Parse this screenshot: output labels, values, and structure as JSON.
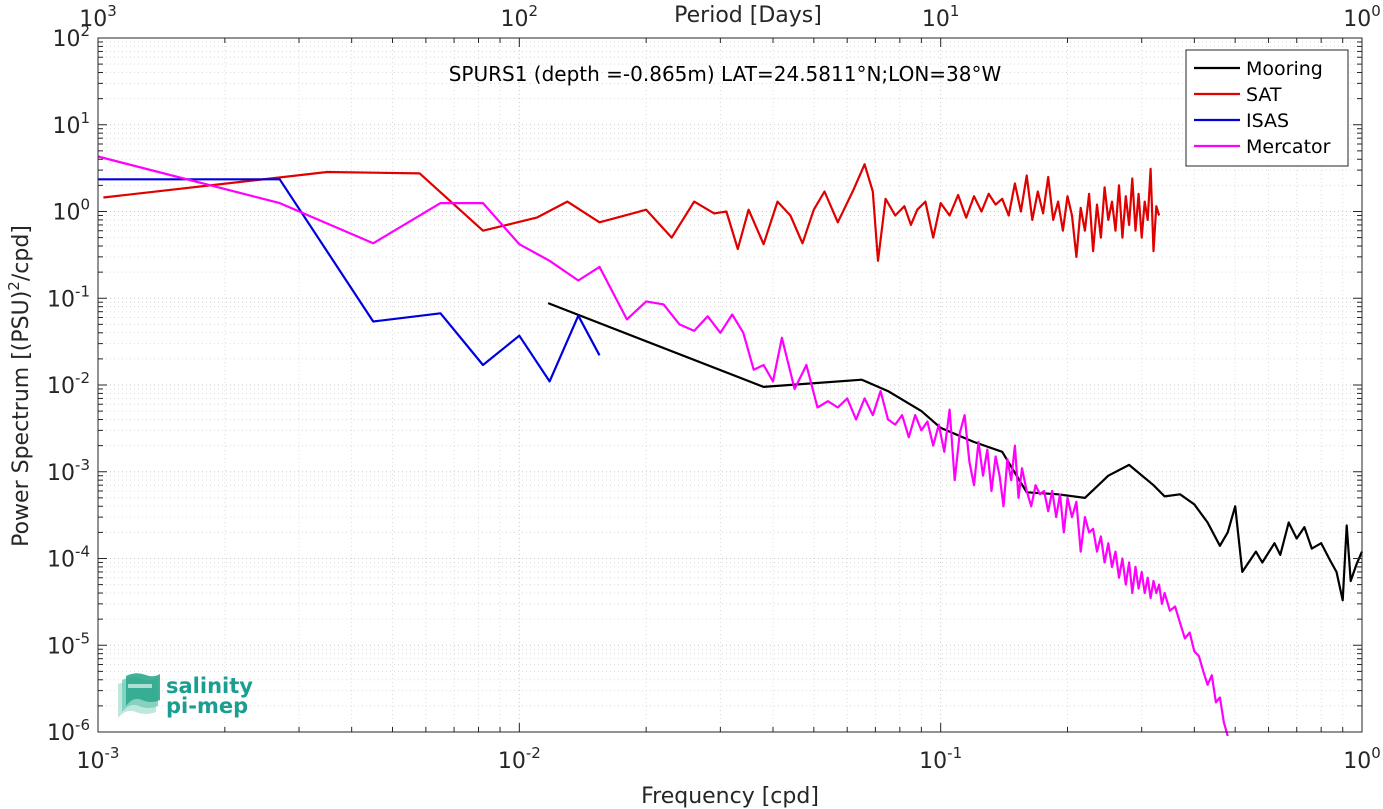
{
  "chart_data": {
    "type": "line",
    "title": "SPURS1 (depth =-0.865m) LAT=24.5811°N;LON=38°W",
    "xlabel": "Frequency [cpd]",
    "ylabel_main": "Power Spectrum [(PSU)",
    "ylabel_sup": "2",
    "ylabel_tail": "/cpd]",
    "top_xlabel": "Period [Days]",
    "xscale": "log",
    "yscale": "log",
    "xlim": [
      0.001,
      1
    ],
    "ylim": [
      1e-06,
      100
    ],
    "grid": true,
    "legend_position": "top-right",
    "x_ticks": [
      {
        "value": 0.001,
        "base": "10",
        "exp": "-3"
      },
      {
        "value": 0.01,
        "base": "10",
        "exp": "-2"
      },
      {
        "value": 0.1,
        "base": "10",
        "exp": "-1"
      },
      {
        "value": 1,
        "base": "10",
        "exp": "0"
      }
    ],
    "y_ticks": [
      {
        "value": 1e-06,
        "base": "10",
        "exp": "-6"
      },
      {
        "value": 1e-05,
        "base": "10",
        "exp": "-5"
      },
      {
        "value": 0.0001,
        "base": "10",
        "exp": "-4"
      },
      {
        "value": 0.001,
        "base": "10",
        "exp": "-3"
      },
      {
        "value": 0.01,
        "base": "10",
        "exp": "-2"
      },
      {
        "value": 0.1,
        "base": "10",
        "exp": "-1"
      },
      {
        "value": 1,
        "base": "10",
        "exp": "0"
      },
      {
        "value": 10,
        "base": "10",
        "exp": "1"
      },
      {
        "value": 100,
        "base": "10",
        "exp": "2"
      }
    ],
    "top_ticks": [
      {
        "value": 0.001,
        "base": "10",
        "exp": "3"
      },
      {
        "value": 0.01,
        "base": "10",
        "exp": "2"
      },
      {
        "value": 0.1,
        "base": "10",
        "exp": "1"
      },
      {
        "value": 1,
        "base": "10",
        "exp": "0"
      }
    ],
    "series": [
      {
        "name": "Mooring",
        "color": "#000000",
        "points": [
          [
            0.0117,
            0.088
          ],
          [
            0.038,
            0.0095
          ],
          [
            0.065,
            0.0115
          ],
          [
            0.075,
            0.0085
          ],
          [
            0.09,
            0.005
          ],
          [
            0.1,
            0.0032
          ],
          [
            0.12,
            0.0022
          ],
          [
            0.14,
            0.0017
          ],
          [
            0.16,
            0.00058
          ],
          [
            0.19,
            0.00055
          ],
          [
            0.22,
            0.0005
          ],
          [
            0.25,
            0.0009
          ],
          [
            0.28,
            0.0012
          ],
          [
            0.32,
            0.0007
          ],
          [
            0.34,
            0.00052
          ],
          [
            0.37,
            0.00055
          ],
          [
            0.4,
            0.00042
          ],
          [
            0.43,
            0.00026
          ],
          [
            0.46,
            0.00014
          ],
          [
            0.48,
            0.0002
          ],
          [
            0.5,
            0.0004
          ],
          [
            0.52,
            7e-05
          ],
          [
            0.56,
            0.00012
          ],
          [
            0.58,
            9e-05
          ],
          [
            0.62,
            0.00015
          ],
          [
            0.64,
            0.00011
          ],
          [
            0.67,
            0.00026
          ],
          [
            0.7,
            0.00017
          ],
          [
            0.73,
            0.00023
          ],
          [
            0.76,
            0.00013
          ],
          [
            0.8,
            0.00015
          ],
          [
            0.84,
            9.5e-05
          ],
          [
            0.87,
            7e-05
          ],
          [
            0.9,
            3.3e-05
          ],
          [
            0.92,
            0.00024
          ],
          [
            0.94,
            5.5e-05
          ],
          [
            0.97,
            8.5e-05
          ],
          [
            1.0,
            0.00012
          ]
        ]
      },
      {
        "name": "SAT",
        "color": "#e00000",
        "points": [
          [
            0.00103,
            1.45
          ],
          [
            0.0035,
            2.85
          ],
          [
            0.0058,
            2.75
          ],
          [
            0.0082,
            0.6
          ],
          [
            0.011,
            0.85
          ],
          [
            0.013,
            1.3
          ],
          [
            0.0155,
            0.75
          ],
          [
            0.02,
            1.05
          ],
          [
            0.023,
            0.5
          ],
          [
            0.026,
            1.3
          ],
          [
            0.029,
            0.95
          ],
          [
            0.031,
            1.0
          ],
          [
            0.033,
            0.37
          ],
          [
            0.035,
            1.05
          ],
          [
            0.038,
            0.42
          ],
          [
            0.041,
            1.3
          ],
          [
            0.044,
            0.9
          ],
          [
            0.047,
            0.43
          ],
          [
            0.05,
            1.05
          ],
          [
            0.053,
            1.7
          ],
          [
            0.057,
            0.75
          ],
          [
            0.062,
            1.75
          ],
          [
            0.066,
            3.5
          ],
          [
            0.069,
            1.7
          ],
          [
            0.071,
            0.27
          ],
          [
            0.074,
            1.4
          ],
          [
            0.078,
            0.9
          ],
          [
            0.082,
            1.15
          ],
          [
            0.085,
            0.7
          ],
          [
            0.088,
            1.05
          ],
          [
            0.092,
            1.3
          ],
          [
            0.096,
            0.5
          ],
          [
            0.1,
            1.25
          ],
          [
            0.105,
            0.9
          ],
          [
            0.11,
            1.55
          ],
          [
            0.115,
            0.85
          ],
          [
            0.12,
            1.5
          ],
          [
            0.125,
            1.0
          ],
          [
            0.13,
            1.6
          ],
          [
            0.135,
            1.2
          ],
          [
            0.14,
            1.4
          ],
          [
            0.145,
            0.9
          ],
          [
            0.15,
            2.1
          ],
          [
            0.155,
            1.0
          ],
          [
            0.16,
            2.6
          ],
          [
            0.165,
            0.8
          ],
          [
            0.17,
            1.7
          ],
          [
            0.175,
            0.95
          ],
          [
            0.18,
            2.5
          ],
          [
            0.185,
            0.8
          ],
          [
            0.19,
            1.3
          ],
          [
            0.195,
            0.6
          ],
          [
            0.2,
            1.5
          ],
          [
            0.205,
            0.9
          ],
          [
            0.21,
            0.3
          ],
          [
            0.215,
            1.1
          ],
          [
            0.22,
            0.6
          ],
          [
            0.225,
            1.6
          ],
          [
            0.23,
            0.35
          ],
          [
            0.235,
            1.2
          ],
          [
            0.24,
            0.5
          ],
          [
            0.245,
            1.9
          ],
          [
            0.25,
            0.8
          ],
          [
            0.255,
            1.3
          ],
          [
            0.26,
            0.6
          ],
          [
            0.265,
            2.0
          ],
          [
            0.27,
            0.5
          ],
          [
            0.275,
            1.5
          ],
          [
            0.28,
            0.7
          ],
          [
            0.285,
            2.4
          ],
          [
            0.29,
            0.6
          ],
          [
            0.295,
            1.6
          ],
          [
            0.3,
            0.5
          ],
          [
            0.305,
            1.3
          ],
          [
            0.31,
            0.8
          ],
          [
            0.315,
            3.1
          ],
          [
            0.32,
            0.35
          ],
          [
            0.325,
            1.15
          ],
          [
            0.33,
            0.9
          ]
        ]
      },
      {
        "name": "ISAS",
        "color": "#0000dd",
        "points": [
          [
            0.001,
            2.35
          ],
          [
            0.0027,
            2.35
          ],
          [
            0.0045,
            0.054
          ],
          [
            0.0065,
            0.067
          ],
          [
            0.0082,
            0.017
          ],
          [
            0.01,
            0.037
          ],
          [
            0.0118,
            0.011
          ],
          [
            0.0138,
            0.063
          ],
          [
            0.0155,
            0.022
          ]
        ]
      },
      {
        "name": "Mercator",
        "color": "#ff00ff",
        "points": [
          [
            0.001,
            4.3
          ],
          [
            0.0027,
            1.25
          ],
          [
            0.0045,
            0.43
          ],
          [
            0.0065,
            1.25
          ],
          [
            0.0082,
            1.25
          ],
          [
            0.01,
            0.42
          ],
          [
            0.0118,
            0.27
          ],
          [
            0.0138,
            0.16
          ],
          [
            0.0155,
            0.23
          ],
          [
            0.018,
            0.057
          ],
          [
            0.02,
            0.092
          ],
          [
            0.022,
            0.085
          ],
          [
            0.024,
            0.05
          ],
          [
            0.026,
            0.042
          ],
          [
            0.028,
            0.062
          ],
          [
            0.03,
            0.04
          ],
          [
            0.032,
            0.065
          ],
          [
            0.034,
            0.04
          ],
          [
            0.036,
            0.015
          ],
          [
            0.038,
            0.017
          ],
          [
            0.04,
            0.011
          ],
          [
            0.042,
            0.035
          ],
          [
            0.045,
            0.009
          ],
          [
            0.048,
            0.017
          ],
          [
            0.051,
            0.0055
          ],
          [
            0.054,
            0.0065
          ],
          [
            0.057,
            0.0055
          ],
          [
            0.06,
            0.007
          ],
          [
            0.063,
            0.004
          ],
          [
            0.066,
            0.007
          ],
          [
            0.069,
            0.0045
          ],
          [
            0.072,
            0.0085
          ],
          [
            0.075,
            0.004
          ],
          [
            0.078,
            0.0035
          ],
          [
            0.081,
            0.0045
          ],
          [
            0.084,
            0.0025
          ],
          [
            0.087,
            0.0045
          ],
          [
            0.09,
            0.003
          ],
          [
            0.093,
            0.0038
          ],
          [
            0.096,
            0.002
          ],
          [
            0.099,
            0.0035
          ],
          [
            0.102,
            0.0017
          ],
          [
            0.105,
            0.0052
          ],
          [
            0.108,
            0.0008
          ],
          [
            0.111,
            0.0028
          ],
          [
            0.114,
            0.0045
          ],
          [
            0.117,
            0.0013
          ],
          [
            0.12,
            0.0007
          ],
          [
            0.123,
            0.0022
          ],
          [
            0.126,
            0.0009
          ],
          [
            0.129,
            0.0018
          ],
          [
            0.132,
            0.0006
          ],
          [
            0.135,
            0.0015
          ],
          [
            0.138,
            0.0009
          ],
          [
            0.141,
            0.0004
          ],
          [
            0.144,
            0.0014
          ],
          [
            0.147,
            0.0008
          ],
          [
            0.15,
            0.002
          ],
          [
            0.153,
            0.0005
          ],
          [
            0.156,
            0.0011
          ],
          [
            0.16,
            0.0006
          ],
          [
            0.164,
            0.0004
          ],
          [
            0.168,
            0.0007
          ],
          [
            0.172,
            0.00055
          ],
          [
            0.176,
            0.0006
          ],
          [
            0.18,
            0.00035
          ],
          [
            0.184,
            0.0006
          ],
          [
            0.188,
            0.0003
          ],
          [
            0.192,
            0.00055
          ],
          [
            0.196,
            0.0002
          ],
          [
            0.2,
            0.0005
          ],
          [
            0.205,
            0.0003
          ],
          [
            0.21,
            0.00045
          ],
          [
            0.215,
            0.00012
          ],
          [
            0.22,
            0.0003
          ],
          [
            0.225,
            0.0002
          ],
          [
            0.23,
            0.00022
          ],
          [
            0.235,
            0.00012
          ],
          [
            0.24,
            0.00018
          ],
          [
            0.245,
            9e-05
          ],
          [
            0.25,
            0.00015
          ],
          [
            0.255,
            8e-05
          ],
          [
            0.26,
            0.00012
          ],
          [
            0.265,
            6e-05
          ],
          [
            0.27,
            0.0001
          ],
          [
            0.275,
            5e-05
          ],
          [
            0.28,
            9e-05
          ],
          [
            0.285,
            4e-05
          ],
          [
            0.29,
            8e-05
          ],
          [
            0.295,
            4.5e-05
          ],
          [
            0.3,
            7e-05
          ],
          [
            0.305,
            4e-05
          ],
          [
            0.31,
            6e-05
          ],
          [
            0.315,
            3.5e-05
          ],
          [
            0.32,
            5.5e-05
          ],
          [
            0.325,
            4e-05
          ],
          [
            0.33,
            5e-05
          ],
          [
            0.335,
            3e-05
          ],
          [
            0.34,
            4e-05
          ],
          [
            0.35,
            2.5e-05
          ],
          [
            0.36,
            2.8e-05
          ],
          [
            0.37,
            1.8e-05
          ],
          [
            0.38,
            1.2e-05
          ],
          [
            0.39,
            1.4e-05
          ],
          [
            0.4,
            8.5e-06
          ],
          [
            0.41,
            7.5e-06
          ],
          [
            0.42,
            5e-06
          ],
          [
            0.43,
            3.5e-06
          ],
          [
            0.44,
            4.5e-06
          ],
          [
            0.45,
            2.2e-06
          ],
          [
            0.46,
            2.5e-06
          ],
          [
            0.47,
            1.3e-06
          ],
          [
            0.48,
            9e-07
          ]
        ]
      }
    ]
  },
  "logo": {
    "line1": "salinity",
    "line2": "pi-mep"
  }
}
